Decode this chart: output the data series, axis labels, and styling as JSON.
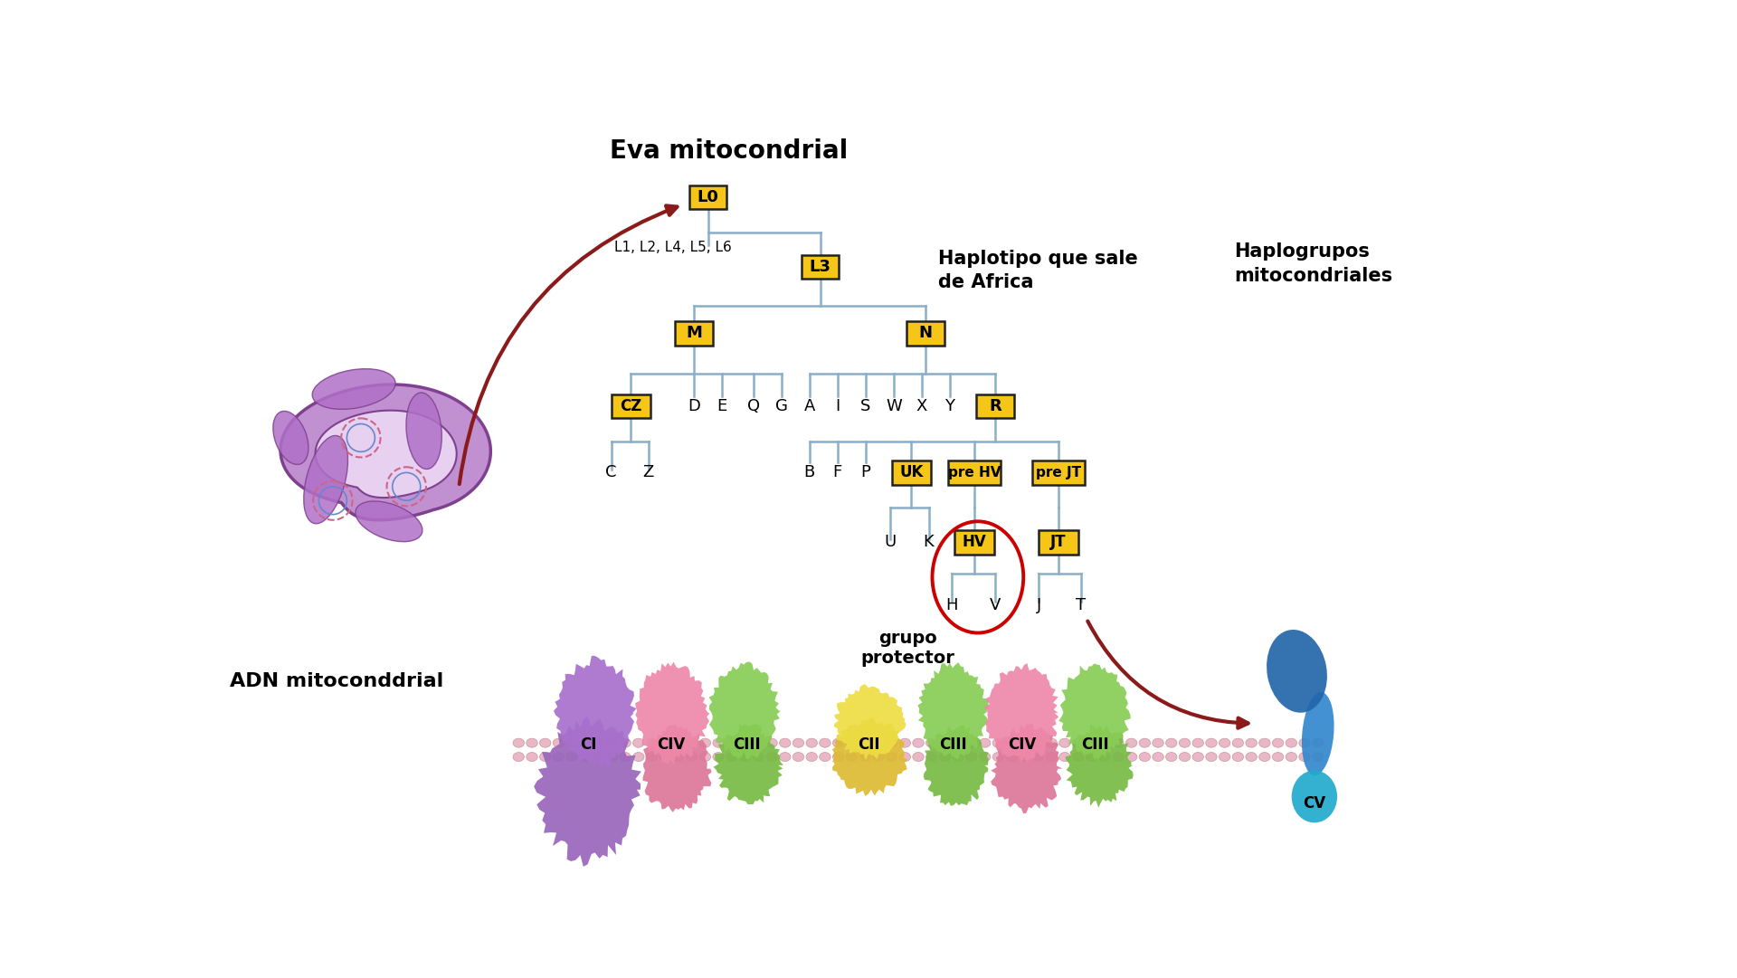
{
  "title": "Eva mitocondrial",
  "label_haplo1": "Haplotipo que sale",
  "label_haplo2": "de Africa",
  "label_haplo_groups": "Haplogrupos\nmitocondriales",
  "label_left": "ADN mitoconddrial",
  "label_grupo": "grupo\nprotector",
  "bg_color": "#ffffff",
  "tree_color": "#8aaec8",
  "box_fill": "#f5c518",
  "box_edge": "#222222",
  "text_color": "#000000",
  "arrow_color": "#8b1a1a",
  "circle_color": "#cc0000"
}
